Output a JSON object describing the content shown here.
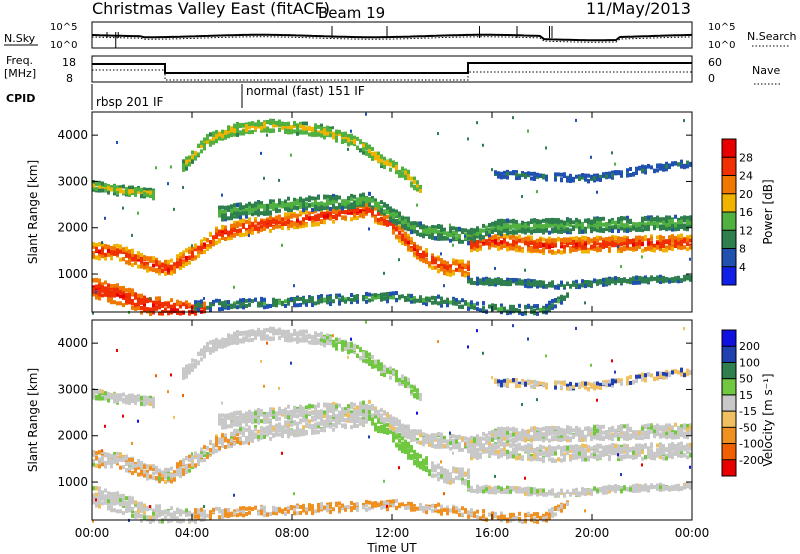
{
  "header": {
    "title": "Christmas Valley East (fitACF)",
    "beam": "Beam 19",
    "date": "11/May/2013"
  },
  "noise_panel": {
    "left_label": "N.Sky",
    "right_label": "N.Search",
    "left_ticks": [
      "10^5",
      "10^0"
    ],
    "right_ticks": [
      "10^5",
      "10^0"
    ]
  },
  "freq_panel": {
    "left_label_1": "Freq.",
    "left_label_2": "[MHz]",
    "right_label": "Nave",
    "left_ticks": [
      "18",
      "8"
    ],
    "right_ticks": [
      "60",
      "0"
    ]
  },
  "cpid": {
    "label": "CPID",
    "modes": [
      {
        "name": "rbsp 201 IF",
        "start_hour": 0
      },
      {
        "name": "normal (fast) 151 IF",
        "start_hour": 6
      }
    ]
  },
  "chart_data": [
    {
      "type": "heatmap",
      "quantity": "power",
      "ylabel": "Slant Range [km]",
      "yticks": [
        "1000",
        "2000",
        "3000",
        "4000"
      ],
      "ylim": [
        180,
        4500
      ],
      "colorbar_label": "Power [dB]",
      "colorbar_ticks": [
        "4",
        "8",
        "12",
        "16",
        "20",
        "24",
        "28"
      ],
      "colorbar_colors": [
        "#1020e8",
        "#2050b0",
        "#2f7f4e",
        "#50b040",
        "#f0b400",
        "#f07800",
        "#f03000",
        "#e80000"
      ],
      "vmin": 0,
      "vmax": 32
    },
    {
      "type": "heatmap",
      "quantity": "velocity",
      "ylabel": "Slant Range [km]",
      "yticks": [
        "1000",
        "2000",
        "3000",
        "4000"
      ],
      "ylim": [
        180,
        4500
      ],
      "colorbar_label": "Velocity [m s⁻¹]",
      "colorbar_ticks": [
        "-200",
        "-100",
        "-50",
        "-15",
        "15",
        "50",
        "100",
        "200"
      ],
      "colorbar_colors": [
        "#e80000",
        "#f06000",
        "#f09020",
        "#f0c060",
        "#c8c8c8",
        "#70c840",
        "#2f7f4e",
        "#2040b0",
        "#1010e0"
      ],
      "vmin": -250,
      "vmax": 250
    }
  ],
  "x_axis": {
    "label": "Time UT",
    "ticks": [
      "00:00",
      "04:00",
      "08:00",
      "12:00",
      "16:00",
      "20:00",
      "00:00"
    ],
    "xlim": [
      0,
      24
    ]
  }
}
